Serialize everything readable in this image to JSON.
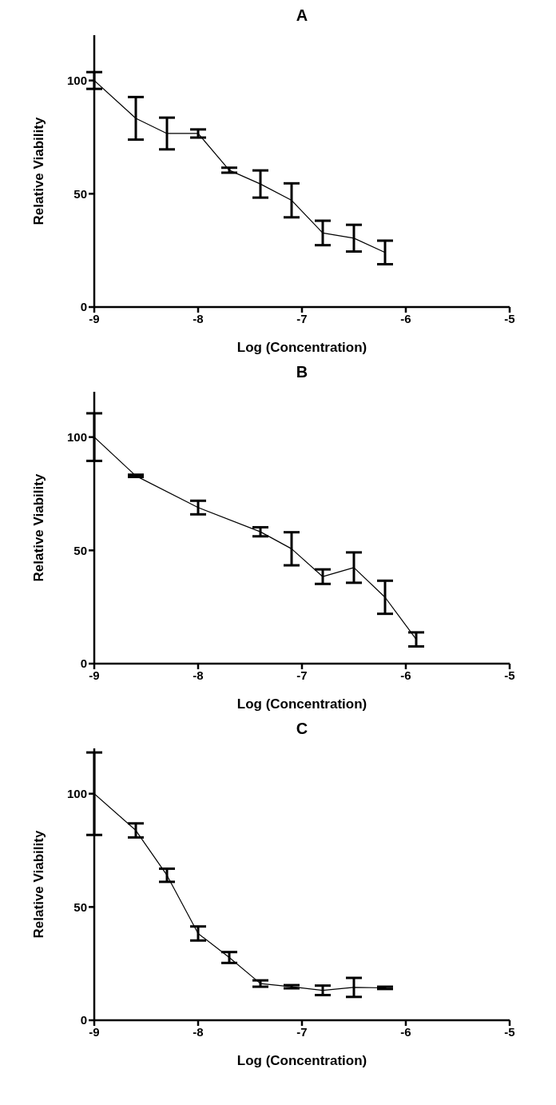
{
  "chart_data": [
    {
      "type": "line",
      "title": "A",
      "xlabel": "Log (Concentration)",
      "ylabel": "Relative Viability",
      "x": [
        -9,
        -8.6,
        -8.3,
        -8,
        -7.7,
        -7.4,
        -7.1,
        -6.8,
        -6.5,
        -6.2
      ],
      "xlim": [
        -9,
        -5
      ],
      "xticks": [
        -9,
        -8,
        -7,
        -6,
        -5
      ],
      "ylim": [
        0,
        120
      ],
      "yticks": [
        0,
        50,
        100
      ],
      "marker": "none",
      "line_style": "solid",
      "series": [
        {
          "color": "#000000",
          "values": [
            100,
            83.3,
            76.6,
            76.6,
            60.4,
            54.3,
            47.1,
            32.7,
            30.4,
            24.1
          ],
          "errors": [
            3.7,
            9.4,
            7,
            1.8,
            1.1,
            6,
            7.5,
            5.4,
            5.9,
            5.2
          ]
        }
      ]
    },
    {
      "type": "line",
      "title": "B",
      "xlabel": "Log (Concentration)",
      "ylabel": "Relative Viability",
      "x": [
        -9,
        -8.6,
        -8,
        -7.4,
        -7.1,
        -6.8,
        -6.5,
        -6.2,
        -5.9
      ],
      "xlim": [
        -9,
        -5
      ],
      "xticks": [
        -9,
        -8,
        -7,
        -6,
        -5
      ],
      "ylim": [
        0,
        120
      ],
      "yticks": [
        0,
        50,
        100
      ],
      "marker": "none",
      "line_style": "solid",
      "series": [
        {
          "color": "#000000",
          "values": [
            100,
            82.9,
            68.9,
            58.2,
            50.7,
            38.4,
            42.4,
            29.3,
            10.7
          ],
          "errors": [
            10.5,
            0.5,
            3,
            2,
            7.3,
            3.2,
            6.7,
            7.3,
            3.1
          ]
        }
      ]
    },
    {
      "type": "line",
      "title": "C",
      "xlabel": "Log (Concentration)",
      "ylabel": "Relative Viability",
      "x": [
        -9,
        -8.6,
        -8.3,
        -8,
        -7.7,
        -7.4,
        -7.1,
        -6.8,
        -6.5,
        -6.2
      ],
      "xlim": [
        -9,
        -5
      ],
      "xticks": [
        -9,
        -8,
        -7,
        -6,
        -5
      ],
      "ylim": [
        0,
        120
      ],
      "yticks": [
        0,
        50,
        100
      ],
      "marker": "none",
      "line_style": "solid",
      "series": [
        {
          "color": "#000000",
          "values": [
            100,
            83.8,
            64,
            38.3,
            27.7,
            16.2,
            14.8,
            13.2,
            14.5,
            14.3
          ],
          "errors": [
            18.2,
            3.1,
            2.9,
            3.1,
            2.4,
            1.4,
            0.7,
            2.1,
            4.2,
            0.5
          ]
        }
      ]
    }
  ]
}
